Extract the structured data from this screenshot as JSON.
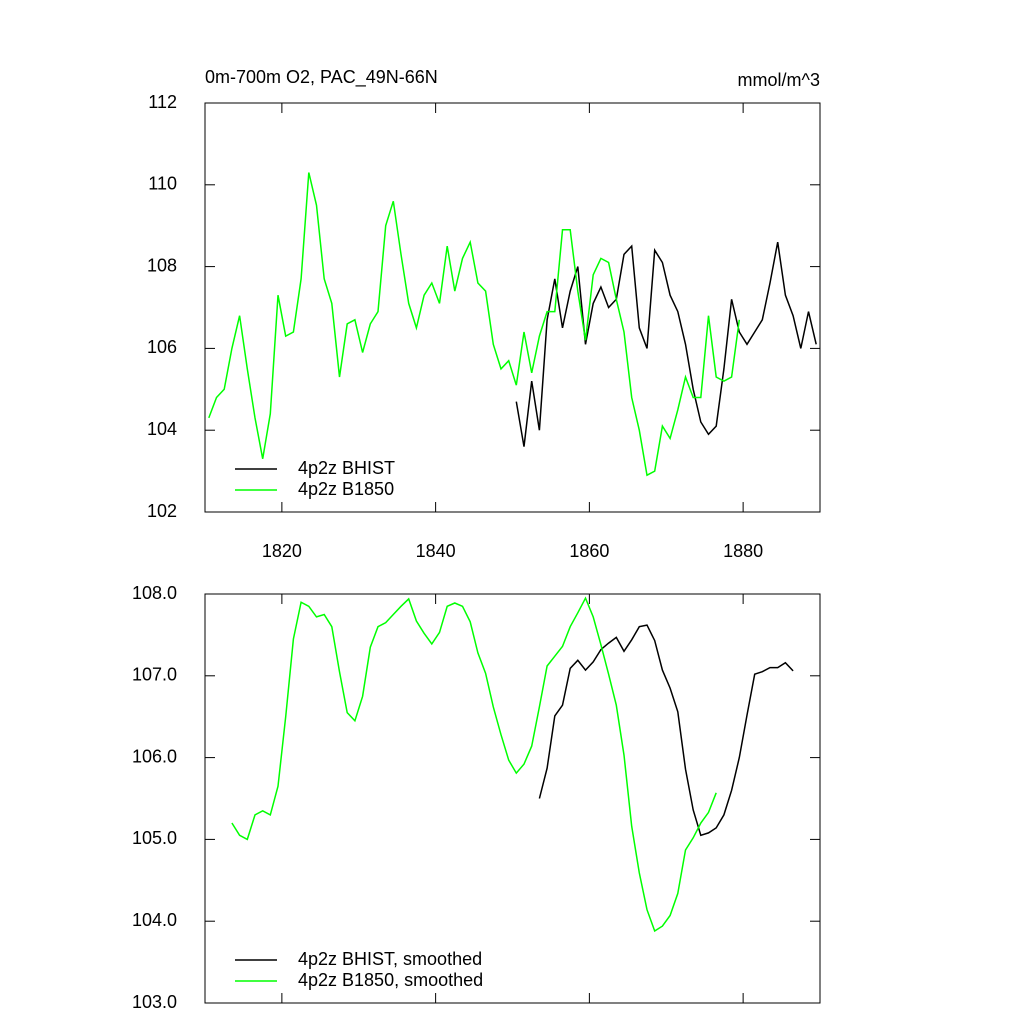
{
  "chart_data": [
    {
      "type": "line",
      "title": "0m-700m O2, PAC_49N-66N",
      "units": "mmol/m^3",
      "x": [
        1810.5,
        1811.5,
        1812.5,
        1813.5,
        1814.5,
        1815.5,
        1816.5,
        1817.5,
        1818.5,
        1819.5,
        1820.5,
        1821.5,
        1822.5,
        1823.5,
        1824.5,
        1825.5,
        1826.5,
        1827.5,
        1828.5,
        1829.5,
        1830.5,
        1831.5,
        1832.5,
        1833.5,
        1834.5,
        1835.5,
        1836.5,
        1837.5,
        1838.5,
        1839.5,
        1840.5,
        1841.5,
        1842.5,
        1843.5,
        1844.5,
        1845.5,
        1846.5,
        1847.5,
        1848.5,
        1849.5,
        1850.5,
        1851.5,
        1852.5,
        1853.5,
        1854.5,
        1855.5,
        1856.5,
        1857.5,
        1858.5,
        1859.5,
        1860.5,
        1861.5,
        1862.5,
        1863.5,
        1864.5,
        1865.5,
        1866.5,
        1867.5,
        1868.5,
        1869.5,
        1870.5,
        1871.5,
        1872.5,
        1873.5,
        1874.5,
        1875.5,
        1876.5,
        1877.5,
        1878.5,
        1879.5,
        1880.5,
        1881.5,
        1882.5,
        1883.5,
        1884.5,
        1885.5,
        1886.5,
        1887.5,
        1888.5,
        1889.5
      ],
      "series": [
        {
          "name": "4p2z BHIST",
          "color": "#000000",
          "values": [
            null,
            null,
            null,
            null,
            null,
            null,
            null,
            null,
            null,
            null,
            null,
            null,
            null,
            null,
            null,
            null,
            null,
            null,
            null,
            null,
            null,
            null,
            null,
            null,
            null,
            null,
            null,
            null,
            null,
            null,
            null,
            null,
            null,
            null,
            null,
            null,
            null,
            null,
            null,
            null,
            104.7,
            103.6,
            105.2,
            104.0,
            106.7,
            107.7,
            106.5,
            107.4,
            108.0,
            106.1,
            107.1,
            107.5,
            107.0,
            107.2,
            108.3,
            108.5,
            106.5,
            106.0,
            108.4,
            108.1,
            107.3,
            106.9,
            106.1,
            105.0,
            104.2,
            103.9,
            104.1,
            105.5,
            107.2,
            106.4,
            106.1,
            106.4,
            106.7,
            107.6,
            108.6,
            107.3,
            106.8,
            106.0,
            106.9,
            106.1
          ]
        },
        {
          "name": "4p2z B1850",
          "color": "#00ff00",
          "values": [
            104.3,
            104.8,
            105.0,
            106.0,
            106.8,
            105.5,
            104.3,
            103.3,
            104.4,
            107.3,
            106.3,
            106.4,
            107.7,
            110.3,
            109.5,
            107.7,
            107.1,
            105.3,
            106.6,
            106.7,
            105.9,
            106.6,
            106.9,
            109.0,
            109.6,
            108.3,
            107.1,
            106.5,
            107.3,
            107.6,
            107.1,
            108.5,
            107.4,
            108.2,
            108.6,
            107.6,
            107.4,
            106.1,
            105.5,
            105.7,
            105.1,
            106.4,
            105.4,
            106.3,
            106.9,
            106.9,
            108.9,
            108.9,
            107.4,
            106.2,
            107.8,
            108.2,
            108.1,
            107.2,
            106.4,
            104.8,
            104.0,
            102.9,
            103.0,
            104.1,
            103.8,
            104.5,
            105.3,
            104.8,
            104.8,
            106.8,
            105.3,
            105.2,
            105.3,
            106.7,
            null,
            null,
            null,
            null,
            null,
            null,
            null,
            null,
            null,
            null
          ]
        }
      ],
      "xlim": [
        1810,
        1890
      ],
      "xticks": [
        1820,
        1840,
        1860,
        1880
      ],
      "ylim": [
        102,
        112
      ],
      "yticks": [
        102,
        104,
        106,
        108,
        110,
        112
      ],
      "legend": "lower left"
    },
    {
      "type": "line",
      "x": [
        1810.5,
        1811.5,
        1812.5,
        1813.5,
        1814.5,
        1815.5,
        1816.5,
        1817.5,
        1818.5,
        1819.5,
        1820.5,
        1821.5,
        1822.5,
        1823.5,
        1824.5,
        1825.5,
        1826.5,
        1827.5,
        1828.5,
        1829.5,
        1830.5,
        1831.5,
        1832.5,
        1833.5,
        1834.5,
        1835.5,
        1836.5,
        1837.5,
        1838.5,
        1839.5,
        1840.5,
        1841.5,
        1842.5,
        1843.5,
        1844.5,
        1845.5,
        1846.5,
        1847.5,
        1848.5,
        1849.5,
        1850.5,
        1851.5,
        1852.5,
        1853.5,
        1854.5,
        1855.5,
        1856.5,
        1857.5,
        1858.5,
        1859.5,
        1860.5,
        1861.5,
        1862.5,
        1863.5,
        1864.5,
        1865.5,
        1866.5,
        1867.5,
        1868.5,
        1869.5,
        1870.5,
        1871.5,
        1872.5,
        1873.5,
        1874.5,
        1875.5,
        1876.5,
        1877.5,
        1878.5,
        1879.5,
        1880.5,
        1881.5,
        1882.5,
        1883.5,
        1884.5,
        1885.5,
        1886.5,
        1887.5,
        1888.5,
        1889.5
      ],
      "series": [
        {
          "name": "4p2z BHIST, smoothed",
          "color": "#000000",
          "values": [
            null,
            null,
            null,
            null,
            null,
            null,
            null,
            null,
            null,
            null,
            null,
            null,
            null,
            null,
            null,
            null,
            null,
            null,
            null,
            null,
            null,
            null,
            null,
            null,
            null,
            null,
            null,
            null,
            null,
            null,
            null,
            null,
            null,
            null,
            null,
            null,
            null,
            null,
            null,
            null,
            null,
            null,
            null,
            105.5,
            105.87,
            106.51,
            106.64,
            107.09,
            107.19,
            107.07,
            107.17,
            107.32,
            107.4,
            107.47,
            107.3,
            107.44,
            107.6,
            107.62,
            107.43,
            107.07,
            106.85,
            106.56,
            105.86,
            105.36,
            105.05,
            105.08,
            105.14,
            105.3,
            105.6,
            106.0,
            106.52,
            107.02,
            107.05,
            107.1,
            107.1,
            107.16,
            107.06,
            null,
            null,
            null
          ]
        },
        {
          "name": "4p2z B1850, smoothed",
          "color": "#00ff00",
          "values": [
            null,
            null,
            null,
            105.2,
            105.05,
            105.0,
            105.3,
            105.35,
            105.3,
            105.65,
            106.5,
            107.45,
            107.9,
            107.85,
            107.72,
            107.75,
            107.6,
            107.05,
            106.55,
            106.45,
            106.75,
            107.35,
            107.6,
            107.65,
            107.75,
            107.85,
            107.94,
            107.67,
            107.52,
            107.39,
            107.53,
            107.85,
            107.89,
            107.85,
            107.66,
            107.28,
            107.03,
            106.62,
            106.28,
            105.97,
            105.81,
            105.92,
            106.14,
            106.62,
            107.12,
            107.24,
            107.36,
            107.6,
            107.77,
            107.95,
            107.72,
            107.38,
            107.02,
            106.64,
            106.03,
            105.16,
            104.59,
            104.14,
            103.88,
            103.94,
            104.07,
            104.34,
            104.87,
            105.02,
            105.2,
            105.33,
            105.57,
            null,
            null,
            null,
            null,
            null,
            null,
            null,
            null,
            null,
            null,
            null,
            null,
            null
          ]
        }
      ],
      "xlim": [
        1810,
        1890
      ],
      "xticks": [
        1820,
        1840,
        1860,
        1880
      ],
      "xtick_labels": false,
      "ylim": [
        103,
        108
      ],
      "yticks": [
        {
          "value": 103,
          "label": "103.0"
        },
        {
          "value": 104,
          "label": "104.0"
        },
        {
          "value": 105,
          "label": "105.0"
        },
        {
          "value": 106,
          "label": "106.0"
        },
        {
          "value": 107,
          "label": "107.0"
        },
        {
          "value": 108,
          "label": "108.0"
        }
      ],
      "legend": "lower left"
    }
  ]
}
